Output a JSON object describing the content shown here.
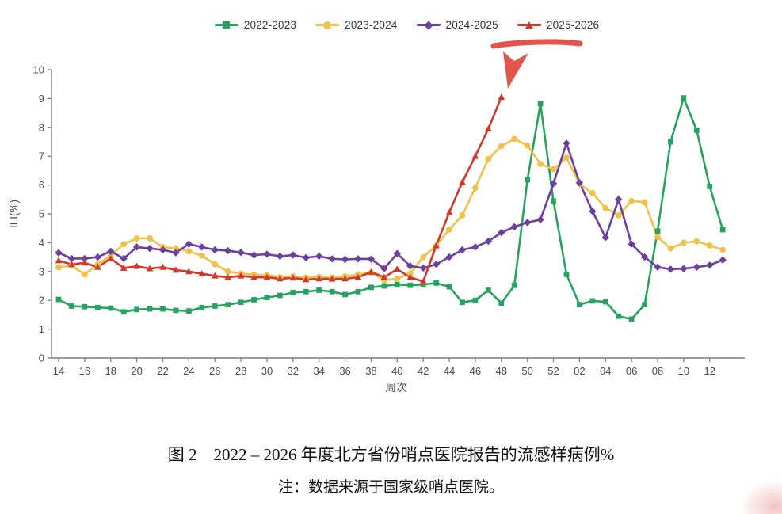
{
  "legend": {
    "items": [
      {
        "label": "2022-2023",
        "color": "#27a35f",
        "marker": "square"
      },
      {
        "label": "2023-2024",
        "color": "#f0c24a",
        "marker": "circle"
      },
      {
        "label": "2024-2025",
        "color": "#6d3f9e",
        "marker": "diamond"
      },
      {
        "label": "2025-2026",
        "color": "#cf392c",
        "marker": "triangle"
      }
    ]
  },
  "annotation": {
    "color": "#e25549",
    "meaning": "hand-drawn red underline below 2025-2026 legend and arrow pointing to the week-48 peak"
  },
  "chart_data": {
    "type": "line",
    "title": "",
    "xlabel": "周次",
    "ylabel": "ILI(%)",
    "ylim": [
      0,
      10
    ],
    "grid": false,
    "legend_position": "top",
    "categories": [
      "14",
      "15",
      "16",
      "17",
      "18",
      "19",
      "20",
      "21",
      "22",
      "23",
      "24",
      "25",
      "26",
      "27",
      "28",
      "29",
      "30",
      "31",
      "32",
      "33",
      "34",
      "35",
      "36",
      "37",
      "38",
      "39",
      "40",
      "41",
      "42",
      "43",
      "44",
      "45",
      "46",
      "47",
      "48",
      "49",
      "50",
      "51",
      "52",
      "01",
      "02",
      "03",
      "04",
      "05",
      "06",
      "07",
      "08",
      "09",
      "10",
      "11",
      "12",
      "13"
    ],
    "x_tick_labels": [
      "14",
      "16",
      "18",
      "20",
      "22",
      "24",
      "26",
      "28",
      "30",
      "32",
      "34",
      "36",
      "38",
      "40",
      "42",
      "44",
      "46",
      "48",
      "50",
      "52",
      "02",
      "04",
      "06",
      "08",
      "10",
      "12"
    ],
    "series": [
      {
        "name": "2022-2023",
        "color": "#27a35f",
        "marker": "square",
        "values": [
          2.03,
          1.8,
          1.78,
          1.75,
          1.73,
          1.6,
          1.68,
          1.7,
          1.7,
          1.65,
          1.63,
          1.75,
          1.8,
          1.85,
          1.93,
          2.02,
          2.1,
          2.17,
          2.27,
          2.3,
          2.35,
          2.3,
          2.2,
          2.3,
          2.45,
          2.5,
          2.55,
          2.52,
          2.55,
          2.6,
          2.47,
          1.93,
          2.0,
          2.35,
          1.9,
          2.52,
          6.18,
          8.82,
          5.45,
          2.9,
          1.85,
          1.98,
          1.95,
          1.45,
          1.35,
          1.85,
          4.4,
          7.5,
          9.02,
          7.9,
          5.95,
          4.45
        ]
      },
      {
        "name": "2023-2024",
        "color": "#f0c24a",
        "marker": "circle",
        "values": [
          3.15,
          3.2,
          2.9,
          3.25,
          3.55,
          3.95,
          4.15,
          4.15,
          3.85,
          3.8,
          3.7,
          3.55,
          3.25,
          3.0,
          2.93,
          2.89,
          2.87,
          2.81,
          2.83,
          2.79,
          2.81,
          2.79,
          2.83,
          2.9,
          2.96,
          2.7,
          2.75,
          2.93,
          3.5,
          3.9,
          4.45,
          4.95,
          5.9,
          6.9,
          7.35,
          7.6,
          7.37,
          6.73,
          6.55,
          6.95,
          6.04,
          5.72,
          5.2,
          4.95,
          5.45,
          5.4,
          4.2,
          3.8,
          4.0,
          4.05,
          3.9,
          3.75
        ]
      },
      {
        "name": "2024-2025",
        "color": "#6d3f9e",
        "marker": "diamond",
        "values": [
          3.65,
          3.45,
          3.45,
          3.5,
          3.7,
          3.45,
          3.85,
          3.8,
          3.75,
          3.65,
          3.95,
          3.85,
          3.75,
          3.72,
          3.66,
          3.57,
          3.6,
          3.53,
          3.57,
          3.48,
          3.53,
          3.44,
          3.42,
          3.44,
          3.43,
          3.1,
          3.62,
          3.19,
          3.12,
          3.25,
          3.5,
          3.75,
          3.85,
          4.05,
          4.35,
          4.55,
          4.7,
          4.8,
          6.05,
          7.45,
          6.08,
          5.09,
          4.18,
          5.5,
          3.95,
          3.5,
          3.15,
          3.08,
          3.1,
          3.15,
          3.22,
          3.4
        ]
      },
      {
        "name": "2025-2026",
        "color": "#cf392c",
        "marker": "triangle",
        "values": [
          3.38,
          3.25,
          3.3,
          3.15,
          3.45,
          3.12,
          3.18,
          3.1,
          3.15,
          3.05,
          3.0,
          2.92,
          2.85,
          2.8,
          2.85,
          2.8,
          2.8,
          2.75,
          2.78,
          2.72,
          2.75,
          2.74,
          2.75,
          2.8,
          2.98,
          2.8,
          3.08,
          2.8,
          2.65,
          3.9,
          5.05,
          6.1,
          7.0,
          7.95,
          9.05
        ]
      }
    ]
  },
  "caption": {
    "line1": "图 2　2022 – 2026 年度北方省份哨点医院报告的流感样病例%",
    "line2": "注：数据来源于国家级哨点医院。"
  }
}
